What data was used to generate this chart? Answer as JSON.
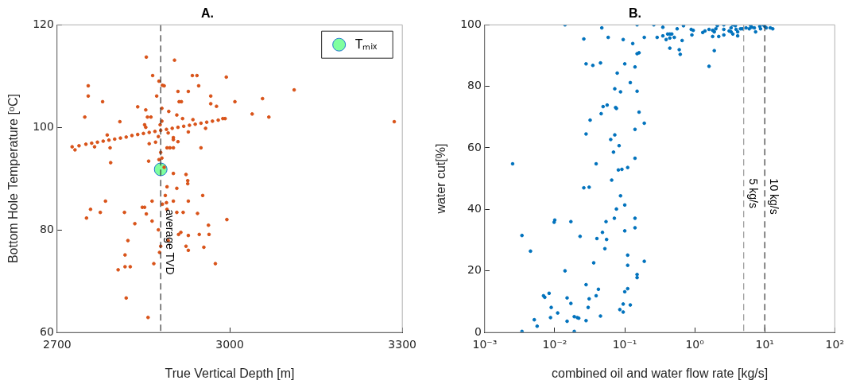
{
  "chart_data": [
    {
      "type": "scatter",
      "title": "A.",
      "xlabel": "True Vertical Depth [m]",
      "ylabel": "Bottom Hole Temperature [ᵒC]",
      "xlim": [
        2700,
        3300
      ],
      "xticks": [
        2700,
        3000,
        3300
      ],
      "ylim": [
        60,
        120
      ],
      "yticks": [
        60,
        80,
        100,
        120
      ],
      "grid": false,
      "legend": "top right",
      "marker": "circle",
      "series": [
        {
          "color": "#d95319",
          "x": [
            2726,
            2738,
            2750,
            2760,
            2770,
            2780,
            2790,
            2800,
            2810,
            2820,
            2830,
            2840,
            2850,
            2860,
            2870,
            2880,
            2890,
            2900,
            2910,
            2920,
            2930,
            2940,
            2950,
            2960,
            2970,
            2980,
            2992,
            2731,
            2855,
            2904,
            2754,
            2754,
            2779,
            2866,
            2877,
            2883,
            2886,
            2935,
            2943,
            2994,
            2946,
            2910,
            2928,
            2873,
            2967,
            3009,
            2912,
            2916,
            2967,
            2977,
            2840,
            2854,
            2882,
            2894,
            2908,
            2748,
            2857,
            2863,
            2882,
            2918,
            2936,
            2988,
            2809,
            2852,
            2854,
            2879,
            2928,
            2958,
            2893,
            2902,
            2902,
            2910,
            2876,
            2860,
            2871,
            2787,
            2792,
            2765,
            2891,
            2896,
            2902,
            2950,
            2880,
            2882,
            2877,
            2859,
            2793,
            2886,
            2902,
            2924,
            2927,
            2927,
            2891,
            2908,
            2953,
            2888,
            2784,
            2865,
            2902,
            2928,
            2890,
            2883,
            2848,
            2852,
            2758,
            2891,
            2775,
            2817,
            2908,
            2919,
            2944,
            2855,
            2751,
            2865,
            2835,
            2963,
            2876,
            2915,
            2911,
            2928,
            2947,
            2964,
            2823,
            2893,
            2924,
            2955,
            2880,
            2928,
            2878,
            2818,
            2868,
            2975,
            2818,
            2827,
            2806,
            2820,
            2858,
            3112,
            3057,
            3039,
            3068,
            3286,
            2995
          ],
          "values": [
            96.2,
            96.4,
            96.7,
            96.9,
            97.1,
            97.3,
            97.5,
            97.7,
            97.9,
            98.1,
            98.4,
            98.6,
            98.8,
            99.0,
            99.2,
            99.4,
            99.6,
            99.8,
            100.0,
            100.2,
            100.4,
            100.6,
            100.8,
            101.0,
            101.2,
            101.4,
            101.7,
            95.6,
            113.7,
            113.1,
            108.1,
            106.1,
            105.0,
            110.1,
            109.0,
            108.2,
            108.1,
            110.1,
            110.1,
            109.8,
            108.1,
            107.0,
            107.0,
            106.1,
            106.1,
            105.0,
            105.0,
            105.0,
            104.6,
            104.1,
            104.0,
            103.4,
            103.7,
            103.1,
            102.4,
            102.0,
            102.0,
            102.0,
            101.2,
            101.7,
            101.5,
            101.7,
            101.1,
            100.5,
            100.0,
            100.5,
            99.1,
            99.8,
            98.9,
            98.0,
            97.6,
            97.2,
            98.2,
            96.8,
            97.1,
            98.5,
            96.0,
            96.2,
            96.0,
            96.0,
            96.0,
            96.0,
            95.1,
            94.0,
            93.7,
            93.4,
            93.1,
            92.2,
            91.0,
            90.8,
            89.6,
            89.0,
            88.4,
            88.1,
            86.7,
            86.7,
            85.6,
            85.6,
            85.6,
            85.6,
            85.3,
            85.0,
            84.4,
            84.4,
            84.0,
            84.0,
            83.4,
            83.4,
            83.4,
            83.4,
            83.2,
            83.1,
            82.3,
            81.7,
            81.2,
            80.9,
            80.0,
            79.5,
            79.1,
            78.9,
            79.1,
            79.1,
            77.9,
            77.9,
            76.8,
            76.6,
            76.8,
            76.0,
            75.6,
            75.1,
            73.4,
            73.4,
            72.8,
            72.8,
            72.2,
            66.7,
            62.9,
            107.3,
            105.6,
            102.6,
            102.0,
            101.1,
            82.0
          ]
        },
        {
          "name": "Tₘᵢₓ",
          "color": "#80ff9f",
          "x": [
            2880
          ],
          "values": [
            91.8
          ]
        }
      ],
      "ref_lines": [
        {
          "axis": "x",
          "value": 2880,
          "label": "average TVD",
          "color": "#333333",
          "line_style": "dashed"
        }
      ]
    },
    {
      "type": "scatter",
      "title": "B.",
      "xlabel": "combined oil and water flow rate [kg/s]",
      "ylabel": "water cut[%]",
      "log": "x",
      "xlim": [
        0.001,
        100
      ],
      "xticks": [
        {
          "value": 0.001,
          "label": "10⁻³"
        },
        {
          "value": 0.01,
          "label": "10⁻²"
        },
        {
          "value": 0.1,
          "label": "10⁻¹"
        },
        {
          "value": 1,
          "label": "10⁰"
        },
        {
          "value": 10,
          "label": "10¹"
        },
        {
          "value": 100,
          "label": "10²"
        }
      ],
      "ylim": [
        0,
        100
      ],
      "yticks": [
        0,
        20,
        40,
        60,
        80,
        100
      ],
      "grid": false,
      "marker": "circle",
      "series": [
        {
          "color": "#0072bd",
          "x": [
            0.0025,
            0.014,
            0.026,
            0.028,
            0.035,
            0.045,
            0.047,
            0.058,
            0.095,
            0.13,
            0.15,
            0.19,
            0.15,
            0.16,
            0.1,
            0.14,
            0.078,
            0.12,
            0.072,
            0.087,
            0.15,
            0.056,
            0.049,
            0.074,
            0.076,
            0.16,
            0.046,
            0.032,
            0.19,
            0.14,
            0.028,
            0.072,
            0.063,
            0.083,
            0.069,
            0.14,
            0.039,
            0.11,
            0.091,
            0.081,
            0.065,
            0.026,
            0.031,
            0.087,
            0.1,
            0.076,
            0.071,
            0.14,
            0.01,
            0.0098,
            0.017,
            0.054,
            0.14,
            0.048,
            0.1,
            0.0034,
            0.023,
            0.04,
            0.055,
            0.052,
            0.0045,
            0.11,
            0.036,
            0.19,
            0.11,
            0.014,
            0.15,
            0.15,
            0.028,
            0.042,
            0.11,
            0.1,
            0.0083,
            0.0069,
            0.0072,
            0.039,
            0.015,
            0.031,
            0.017,
            0.095,
            0.12,
            0.0089,
            0.03,
            0.011,
            0.085,
            0.095,
            0.019,
            0.045,
            0.0087,
            0.021,
            0.022,
            0.0051,
            0.015,
            0.028,
            0.0056,
            0.0034,
            0.019,
            0.26,
            0.35,
            0.29,
            0.35,
            0.39,
            0.41,
            0.44,
            0.47,
            0.44,
            0.51,
            0.44,
            0.6,
            0.62,
            0.56,
            0.66,
            0.69,
            0.89,
            0.95,
            0.91,
            1.3,
            1.4,
            1.6,
            1.8,
            1.9,
            1.8,
            1.9,
            1.6,
            2.2,
            2.0,
            2.1,
            2.6,
            2.6,
            2.6,
            3.1,
            3.3,
            3.3,
            3.5,
            3.5,
            3.8,
            3.9,
            4.1,
            4.1,
            4.5,
            4.8,
            5.4,
            6.0,
            6.3,
            6.5,
            7.1,
            7.4,
            8.5,
            8.7,
            9.5,
            10,
            10.5,
            12,
            13
          ],
          "values": [
            54.8,
            100,
            95.4,
            87.3,
            86.8,
            87.6,
            99.0,
            95.9,
            95.2,
            93.9,
            100,
            95.9,
            90.6,
            90.9,
            87.3,
            86.3,
            84.3,
            81.2,
            79.2,
            78.2,
            78.4,
            73.9,
            73.4,
            73.1,
            72.8,
            71.6,
            71.1,
            69.0,
            68.0,
            66.0,
            64.5,
            64.2,
            62.7,
            60.7,
            58.6,
            56.6,
            54.8,
            53.6,
            53.0,
            52.8,
            49.5,
            47.0,
            47.2,
            44.4,
            41.4,
            40.1,
            37.1,
            37.1,
            36.5,
            35.8,
            36.0,
            36.0,
            34.0,
            32.5,
            33.0,
            31.5,
            31.2,
            30.5,
            30.2,
            27.2,
            26.4,
            25.1,
            22.6,
            23.1,
            21.8,
            20.0,
            18.8,
            17.8,
            15.5,
            14.0,
            14.2,
            13.2,
            12.7,
            11.9,
            11.4,
            11.9,
            11.2,
            10.9,
            9.4,
            9.2,
            8.9,
            8.1,
            8.1,
            6.3,
            7.4,
            6.6,
            5.1,
            5.3,
            4.8,
            4.8,
            4.6,
            4.1,
            3.6,
            3.8,
            2.0,
            0.3,
            0.3,
            100,
            99.2,
            95.9,
            96.4,
            95.2,
            97.0,
            97.0,
            97.0,
            95.7,
            95.9,
            92.4,
            91.9,
            90.4,
            98.7,
            94.9,
            99.7,
            98.5,
            98.2,
            96.7,
            97.5,
            98.0,
            98.5,
            98.2,
            97.7,
            96.2,
            91.6,
            86.5,
            96.2,
            98.7,
            99.7,
            100,
            98.5,
            96.7,
            98.0,
            97.7,
            99.0,
            100,
            97.0,
            99.7,
            98.5,
            96.4,
            97.7,
            98.7,
            98.7,
            99.0,
            98.7,
            99.7,
            99.2,
            99.0,
            97.7,
            99.5,
            98.7,
            100,
            99.5,
            99.0,
            99.0,
            98.7
          ]
        }
      ],
      "ref_lines": [
        {
          "axis": "x",
          "value": 5,
          "label": "5 kg/s",
          "color": "#999999",
          "line_style": "dashed"
        },
        {
          "axis": "x",
          "value": 10,
          "label": "10 kg/s",
          "color": "#333333",
          "line_style": "dashed"
        }
      ]
    }
  ]
}
